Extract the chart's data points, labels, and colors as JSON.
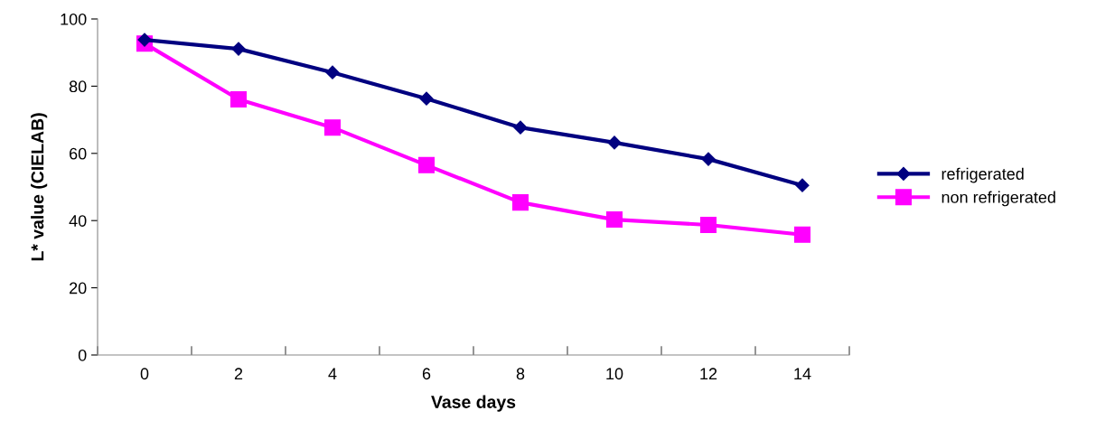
{
  "chart_data": {
    "type": "line",
    "xlabel": "Vase days",
    "ylabel": "L* value (CIELAB)",
    "categories": [
      "0",
      "2",
      "4",
      "6",
      "8",
      "10",
      "12",
      "14"
    ],
    "series": [
      {
        "name": "refrigerated",
        "color": "#000080",
        "marker": "diamond",
        "values": [
          93.8,
          91.1,
          84.1,
          76.3,
          67.7,
          63.2,
          58.3,
          50.5
        ]
      },
      {
        "name": "non refrigerated",
        "color": "#ff00ff",
        "marker": "square",
        "values": [
          92.7,
          76.1,
          67.7,
          56.5,
          45.4,
          40.3,
          38.7,
          35.8
        ]
      }
    ],
    "ylim": [
      0,
      100
    ],
    "yticks": [
      0,
      20,
      40,
      60,
      80,
      100
    ],
    "grid": false,
    "legend": "right",
    "line_style": "solid"
  }
}
